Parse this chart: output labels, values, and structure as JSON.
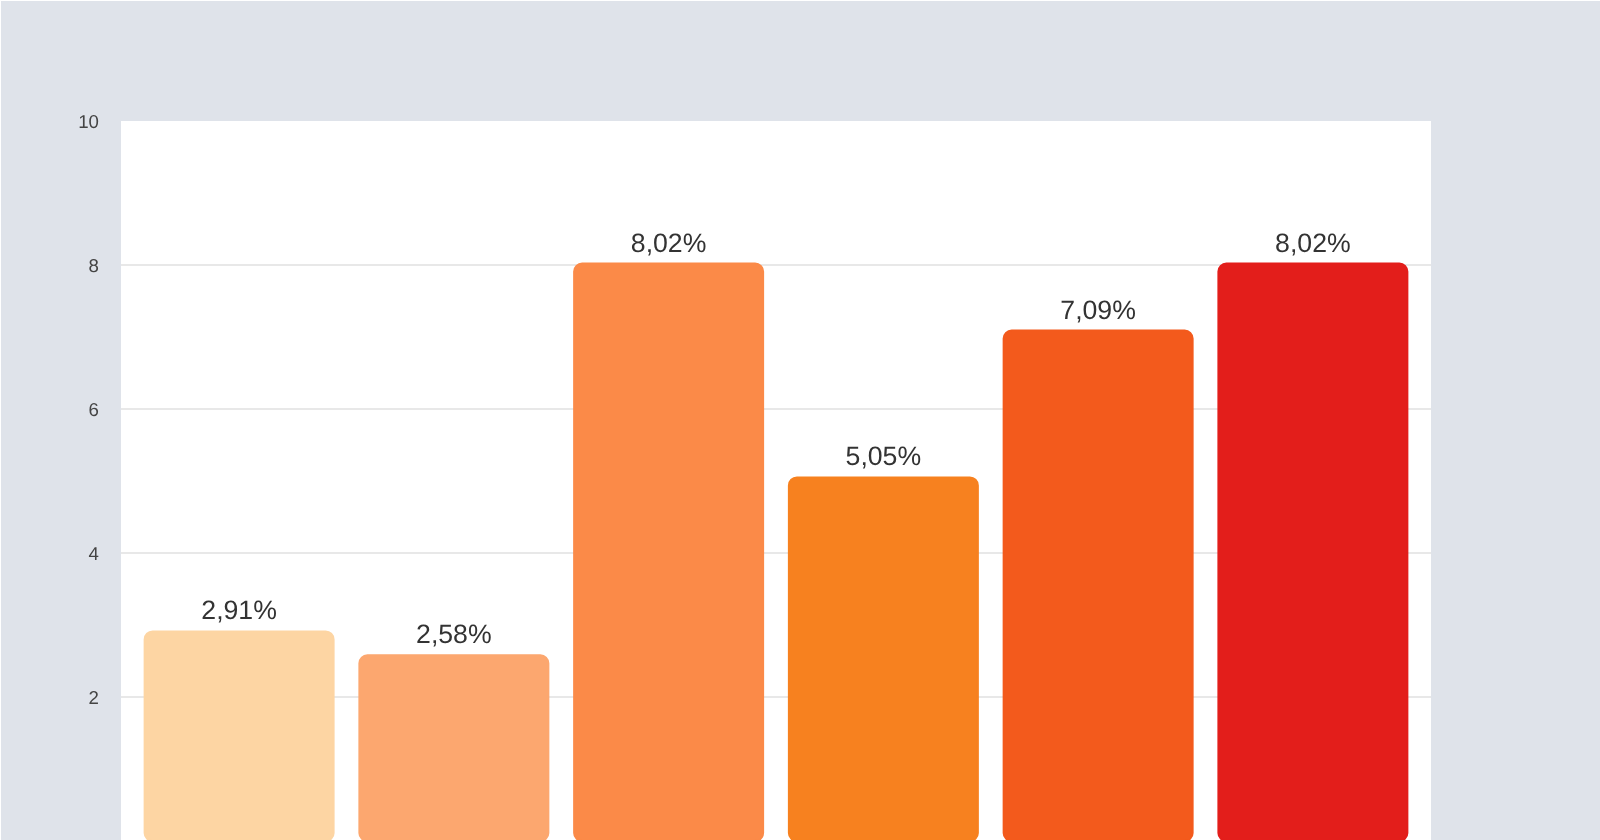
{
  "chart_data": {
    "type": "bar",
    "categories": [
      null,
      null,
      null,
      null,
      null,
      null
    ],
    "values": [
      2.91,
      2.58,
      8.02,
      5.05,
      7.09,
      8.02
    ],
    "colors": [
      "#fdd5a3",
      "#fca76f",
      "#fb8a48",
      "#f7811f",
      "#f35a1c",
      "#e31e1b"
    ],
    "value_labels": [
      "2,91%",
      "2,58%",
      "8,02%",
      "5,05%",
      "7,09%",
      "8,02%"
    ],
    "ylim": [
      0,
      10
    ],
    "yticks": [
      2,
      4,
      6,
      8,
      10
    ],
    "grid": "y"
  }
}
